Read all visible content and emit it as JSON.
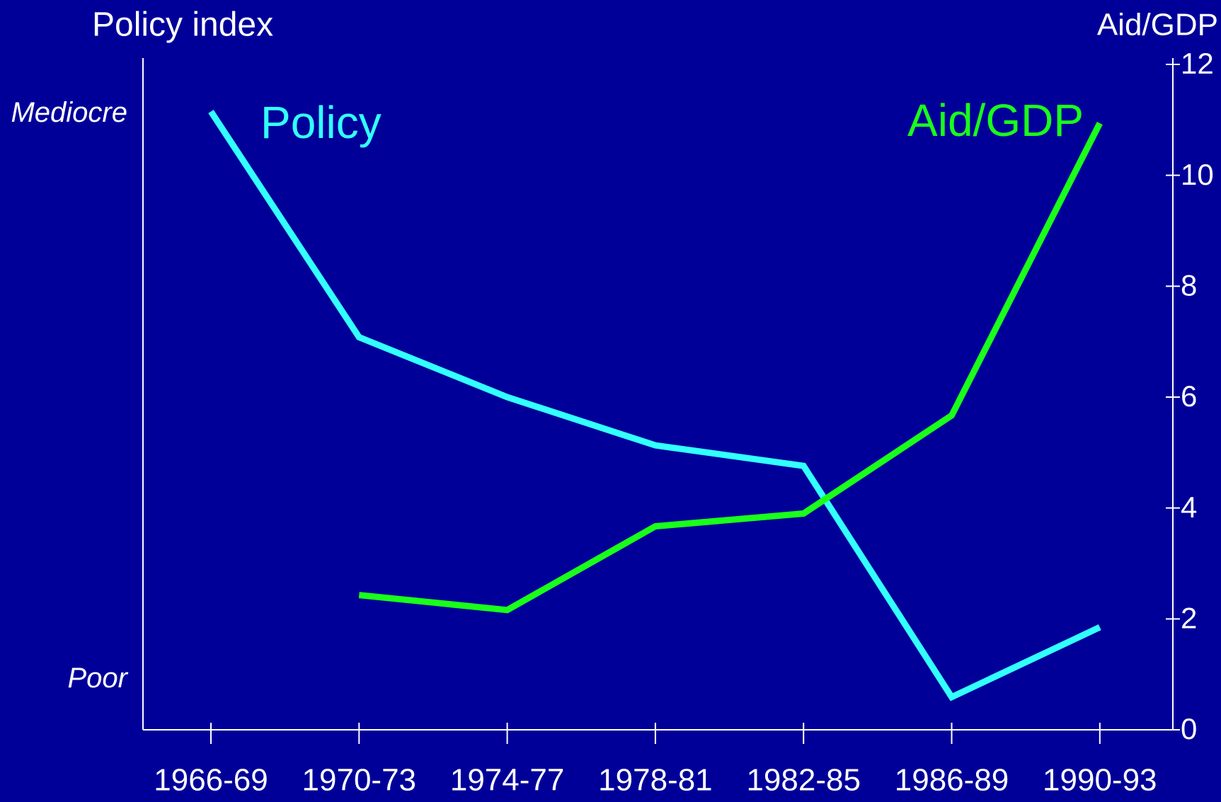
{
  "chart_data": {
    "type": "line",
    "y_label": "Policy index",
    "y2_label": "Aid/GDP",
    "categories": [
      "1966-69",
      "1970-73",
      "1974-77",
      "1978-81",
      "1982-85",
      "1986-89",
      "1990-93"
    ],
    "series": [
      {
        "name": "Policy",
        "color": "#33ffff",
        "values": [
          11.15,
          7.08,
          6.0,
          5.13,
          4.76,
          0.59,
          1.85
        ]
      },
      {
        "name": "Aid/GDP",
        "color": "#1aff1a",
        "axis": "y2",
        "values": [
          null,
          2.43,
          2.16,
          3.67,
          3.9,
          5.67,
          10.94
        ]
      }
    ],
    "ylim": [
      0,
      12
    ],
    "yticks": [
      {
        "value": 11.1,
        "label": "Mediocre"
      },
      {
        "value": 0.9,
        "label": "Poor"
      }
    ],
    "y2lim": [
      0,
      12
    ],
    "y2ticks": [
      0,
      2,
      4,
      6,
      8,
      10,
      12
    ]
  }
}
